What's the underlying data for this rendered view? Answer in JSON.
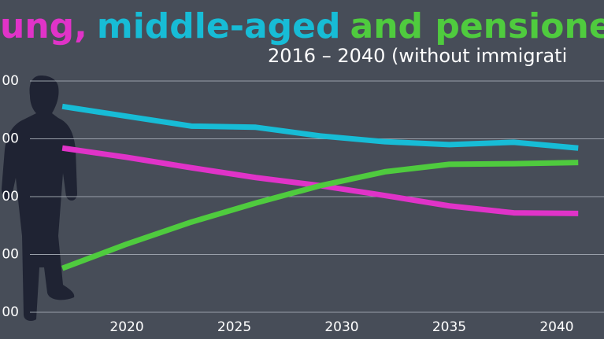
{
  "chart_data": {
    "type": "line",
    "title_parts": [
      {
        "text": "ung,",
        "color": "#e033c8"
      },
      {
        "text": "middle-aged",
        "color": "#17bcd6"
      },
      {
        "text": "and pensione",
        "color": "#4fcb3e"
      }
    ],
    "subtitle": "2016 – 2040 (without immigrati",
    "x": [
      2017,
      2020,
      2023,
      2026,
      2029,
      2032,
      2035,
      2038,
      2041
    ],
    "series": [
      {
        "color": "#17bcd6",
        "values": [
          3.56,
          3.39,
          3.22,
          3.2,
          3.05,
          2.95,
          2.9,
          2.94,
          2.84
        ]
      },
      {
        "color": "#e033c8",
        "values": [
          2.84,
          2.68,
          2.5,
          2.33,
          2.19,
          2.02,
          1.84,
          1.72,
          1.71
        ]
      },
      {
        "color": "#4fcb3e",
        "values": [
          0.76,
          1.18,
          1.56,
          1.89,
          2.19,
          2.43,
          2.56,
          2.57,
          2.59
        ]
      }
    ],
    "xlim": [
      2014.1,
      2042.2
    ],
    "xticks": [
      2020,
      2025,
      2030,
      2035,
      2040
    ],
    "ylim": [
      0,
      4
    ],
    "yticks": [
      {
        "value": 0,
        "label": "00"
      },
      {
        "value": 1,
        "label": "00"
      },
      {
        "value": 2,
        "label": "00"
      },
      {
        "value": 3,
        "label": "00"
      },
      {
        "value": 4,
        "label": "00"
      }
    ],
    "grid": true
  }
}
